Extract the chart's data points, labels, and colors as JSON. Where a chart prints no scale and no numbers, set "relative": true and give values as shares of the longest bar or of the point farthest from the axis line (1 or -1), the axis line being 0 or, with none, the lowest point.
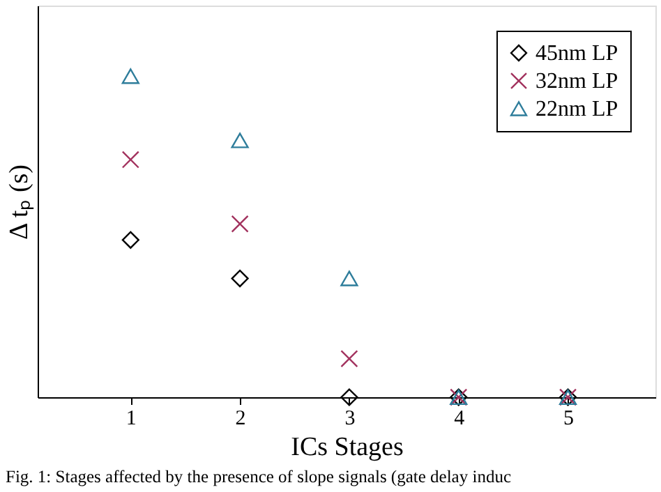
{
  "chart_data": {
    "type": "scatter",
    "xlabel": "ICs Stages",
    "ylabel": "Δ tₚ (s)",
    "relative": true,
    "x": [
      1,
      2,
      3,
      4,
      5
    ],
    "xlim": [
      0.15,
      5.8
    ],
    "xticks": [
      1,
      2,
      3,
      4,
      5
    ],
    "grid": false,
    "legend": "top right",
    "series": [
      {
        "name": "45nm LP",
        "color": "#000000",
        "marker": "diamond",
        "values": [
          0.49,
          0.37,
          0,
          0,
          0
        ]
      },
      {
        "name": "32nm LP",
        "color": "#a2325e",
        "marker": "cross",
        "values": [
          0.74,
          0.54,
          0.12,
          0,
          0
        ]
      },
      {
        "name": "22nm LP",
        "color": "#2e7d9b",
        "marker": "triangle",
        "values": [
          1,
          0.8,
          0.37,
          0,
          0
        ]
      }
    ],
    "annotations": [
      "Fig. 1: Stages affected by the presence of slope signals (gate delay induc"
    ]
  }
}
